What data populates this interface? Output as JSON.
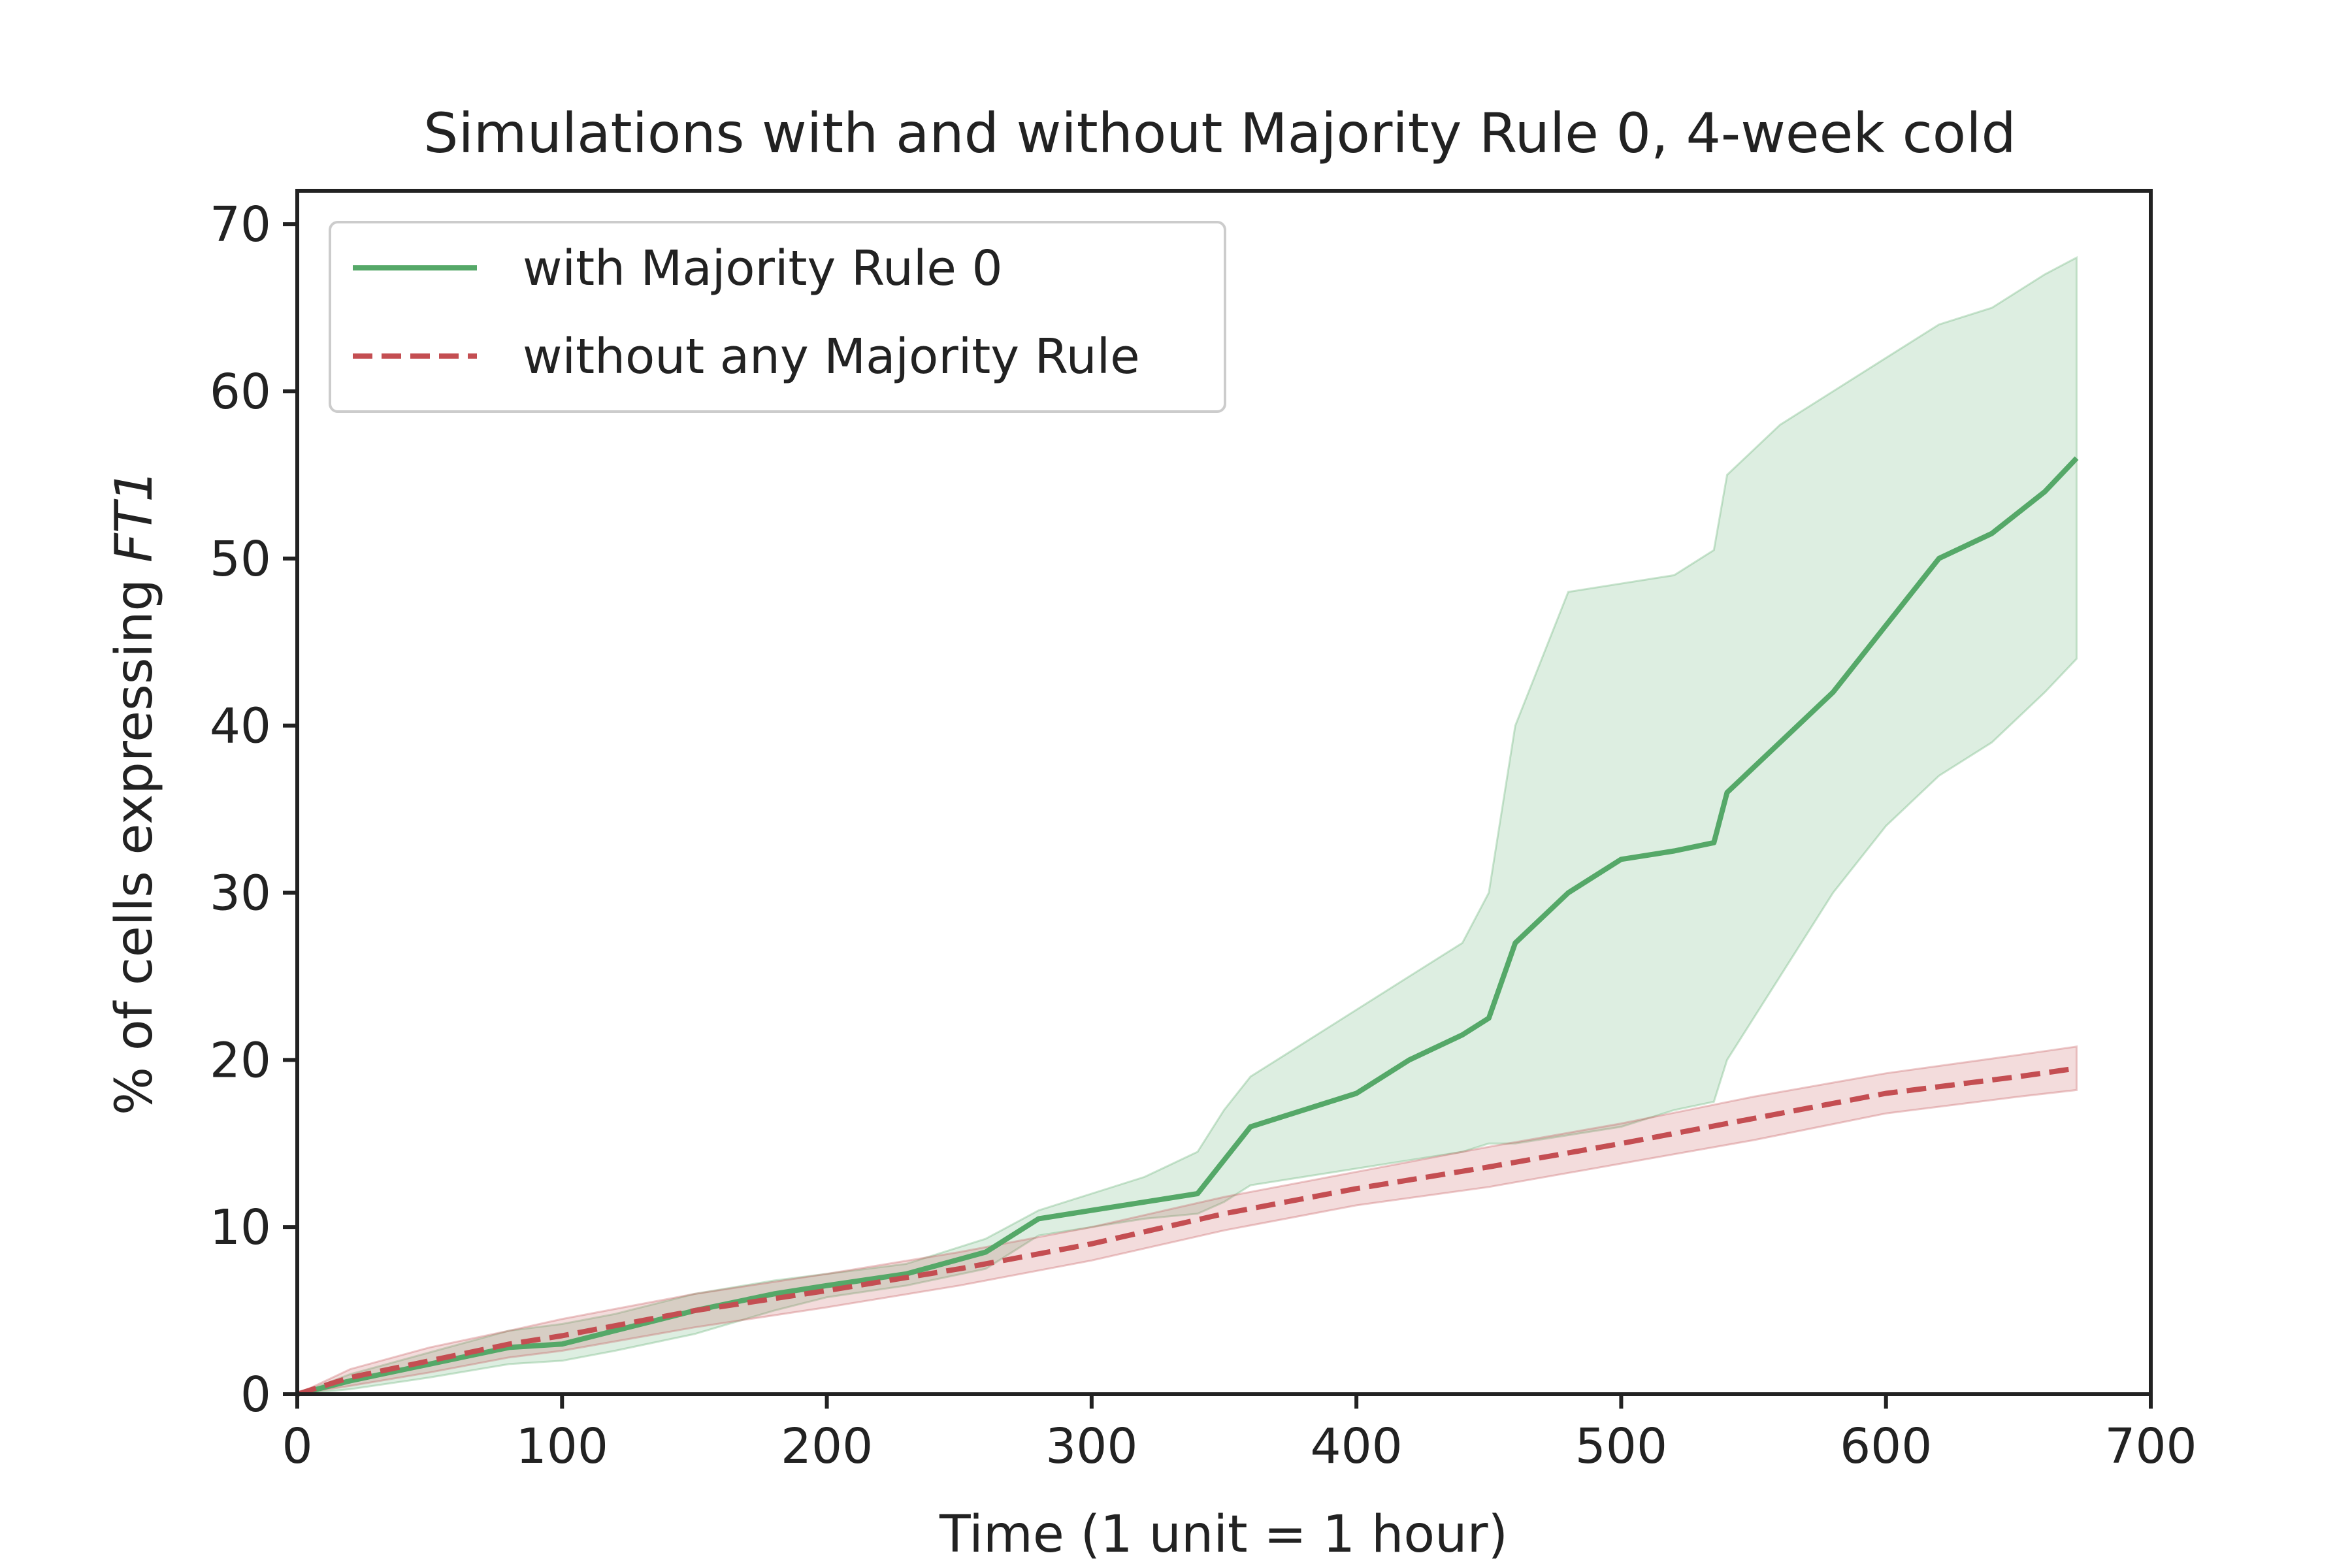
{
  "chart_data": {
    "type": "line",
    "title": "Simulations with and without Majority Rule 0, 4-week cold",
    "xlabel": "Time (1 unit = 1 hour)",
    "ylabel_prefix": "% of cells expressing ",
    "ylabel_gene": "FT1",
    "xlim": [
      0,
      700
    ],
    "ylim": [
      0,
      72
    ],
    "xticks": [
      0,
      100,
      200,
      300,
      400,
      500,
      600,
      700
    ],
    "yticks": [
      0,
      10,
      20,
      30,
      40,
      50,
      60,
      70
    ],
    "grid": false,
    "legend_placement": "top-left",
    "series": [
      {
        "name": "with Majority Rule 0",
        "color": "#55a868",
        "linestyle": "solid",
        "x": [
          0,
          20,
          50,
          80,
          100,
          120,
          150,
          180,
          200,
          230,
          260,
          280,
          300,
          320,
          340,
          350,
          360,
          380,
          400,
          420,
          440,
          450,
          460,
          480,
          500,
          520,
          535,
          540,
          560,
          580,
          600,
          620,
          640,
          660,
          672
        ],
        "y": [
          0,
          0.8,
          1.8,
          2.8,
          3.0,
          3.8,
          5.0,
          6.0,
          6.5,
          7.2,
          8.5,
          10.5,
          11.0,
          11.5,
          12.0,
          14.0,
          16.0,
          17.0,
          18.0,
          20.0,
          21.5,
          22.5,
          27.0,
          30.0,
          32.0,
          32.5,
          33.0,
          36.0,
          39.0,
          42.0,
          46.0,
          50.0,
          51.5,
          54.0,
          56.0
        ],
        "upper": [
          0,
          1.2,
          2.5,
          3.8,
          4.2,
          4.8,
          6.0,
          6.8,
          7.2,
          7.8,
          9.3,
          11.0,
          12.0,
          13.0,
          14.5,
          17.0,
          19.0,
          21.0,
          23.0,
          25.0,
          27.0,
          30.0,
          40.0,
          48.0,
          48.5,
          49.0,
          50.5,
          55.0,
          58.0,
          60.0,
          62.0,
          64.0,
          65.0,
          67.0,
          68.0
        ],
        "lower": [
          0,
          0.3,
          1.0,
          1.8,
          2.0,
          2.6,
          3.6,
          5.0,
          5.8,
          6.5,
          7.5,
          9.5,
          10.0,
          10.5,
          10.8,
          11.5,
          12.5,
          13.0,
          13.5,
          14.0,
          14.5,
          15.0,
          15.0,
          15.5,
          16.0,
          17.0,
          17.5,
          20.0,
          25.0,
          30.0,
          34.0,
          37.0,
          39.0,
          42.0,
          44.0
        ]
      },
      {
        "name": "without any Majority Rule",
        "color": "#c44e52",
        "linestyle": "dashed",
        "x": [
          0,
          20,
          50,
          80,
          100,
          150,
          200,
          250,
          300,
          350,
          400,
          450,
          500,
          550,
          600,
          650,
          672
        ],
        "y": [
          0,
          1.0,
          2.0,
          3.0,
          3.5,
          5.0,
          6.2,
          7.5,
          9.0,
          10.8,
          12.3,
          13.6,
          15.0,
          16.5,
          18.0,
          19.0,
          19.5
        ],
        "upper": [
          0,
          1.5,
          2.8,
          3.8,
          4.5,
          6.0,
          7.2,
          8.5,
          10.0,
          11.8,
          13.3,
          14.8,
          16.2,
          17.8,
          19.2,
          20.3,
          20.8
        ],
        "lower": [
          0,
          0.5,
          1.3,
          2.2,
          2.6,
          4.0,
          5.2,
          6.5,
          8.0,
          9.8,
          11.3,
          12.4,
          13.8,
          15.2,
          16.8,
          17.8,
          18.2
        ]
      }
    ]
  }
}
